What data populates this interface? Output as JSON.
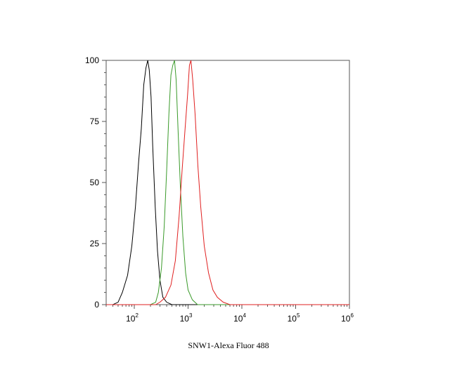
{
  "chart_data": {
    "type": "line",
    "title": "",
    "xlabel": "SNW1-Alexa Fluor 488",
    "ylabel": "",
    "x_scale": "log10",
    "xlim": [
      30,
      1000000
    ],
    "ylim": [
      0,
      100
    ],
    "y_ticks": [
      0,
      25,
      50,
      75,
      100
    ],
    "y_tick_labels": [
      "0",
      "25",
      "50",
      "75",
      "100"
    ],
    "x_ticks": [
      100,
      1000,
      10000,
      100000,
      1000000
    ],
    "x_tick_labels": [
      {
        "base": "10",
        "exp": "2"
      },
      {
        "base": "10",
        "exp": "3"
      },
      {
        "base": "10",
        "exp": "4"
      },
      {
        "base": "10",
        "exp": "5"
      },
      {
        "base": "10",
        "exp": "6"
      }
    ],
    "grid": false,
    "legend": "none",
    "series": [
      {
        "color": "#000000",
        "points": [
          [
            30,
            0
          ],
          [
            40,
            0
          ],
          [
            50,
            1
          ],
          [
            60,
            5
          ],
          [
            75,
            12
          ],
          [
            90,
            24
          ],
          [
            105,
            40
          ],
          [
            120,
            58
          ],
          [
            135,
            72
          ],
          [
            150,
            90
          ],
          [
            165,
            97
          ],
          [
            178,
            100
          ],
          [
            190,
            96
          ],
          [
            205,
            85
          ],
          [
            220,
            65
          ],
          [
            245,
            40
          ],
          [
            270,
            22
          ],
          [
            300,
            10
          ],
          [
            340,
            3
          ],
          [
            400,
            1
          ],
          [
            500,
            0
          ],
          [
            700,
            0
          ],
          [
            1000000,
            0
          ]
        ]
      },
      {
        "color": "#3a9a2a",
        "points": [
          [
            30,
            0
          ],
          [
            200,
            0
          ],
          [
            250,
            1
          ],
          [
            280,
            5
          ],
          [
            320,
            15
          ],
          [
            360,
            32
          ],
          [
            400,
            55
          ],
          [
            440,
            78
          ],
          [
            480,
            94
          ],
          [
            520,
            98
          ],
          [
            560,
            100
          ],
          [
            600,
            92
          ],
          [
            650,
            72
          ],
          [
            720,
            48
          ],
          [
            800,
            28
          ],
          [
            900,
            13
          ],
          [
            1000,
            6
          ],
          [
            1200,
            2
          ],
          [
            1500,
            0
          ],
          [
            1000000,
            0
          ]
        ]
      },
      {
        "color": "#e02020",
        "points": [
          [
            30,
            0
          ],
          [
            250,
            0
          ],
          [
            300,
            1
          ],
          [
            380,
            3
          ],
          [
            480,
            8
          ],
          [
            580,
            18
          ],
          [
            680,
            36
          ],
          [
            780,
            56
          ],
          [
            880,
            72
          ],
          [
            980,
            86
          ],
          [
            1060,
            98
          ],
          [
            1130,
            100
          ],
          [
            1220,
            92
          ],
          [
            1350,
            78
          ],
          [
            1520,
            57
          ],
          [
            1720,
            40
          ],
          [
            2000,
            24
          ],
          [
            2400,
            13
          ],
          [
            2900,
            6
          ],
          [
            3500,
            3
          ],
          [
            4500,
            1
          ],
          [
            6000,
            0
          ],
          [
            1000000,
            0
          ]
        ]
      }
    ]
  }
}
